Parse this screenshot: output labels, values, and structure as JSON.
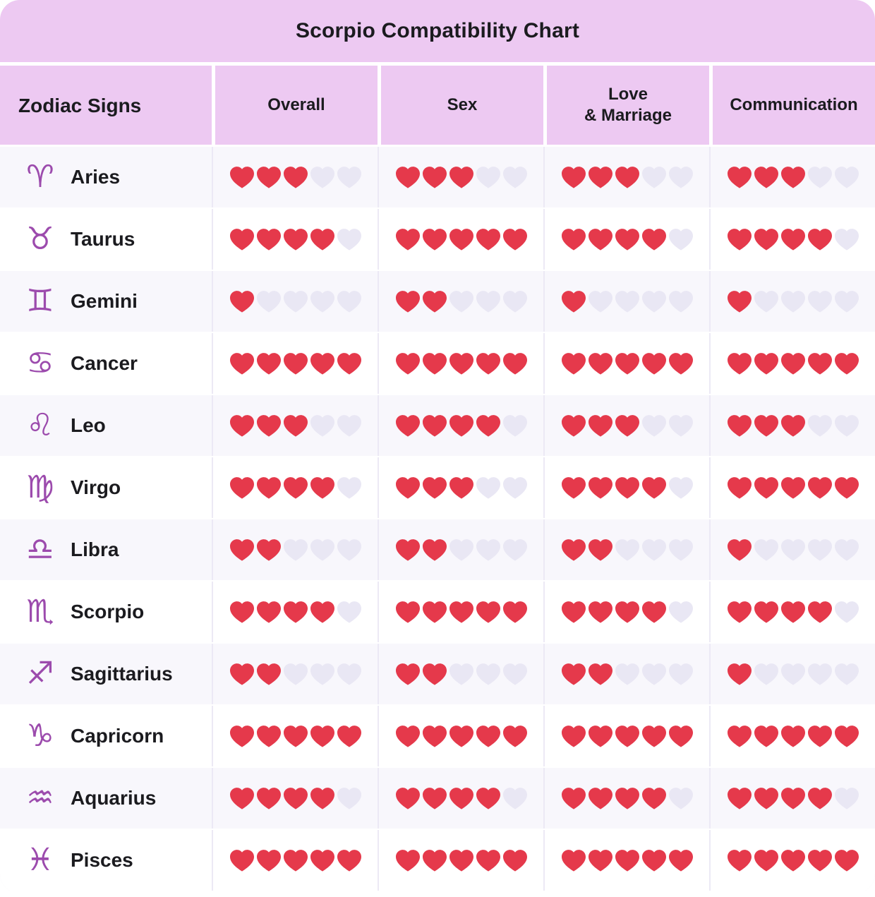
{
  "chart_data": {
    "type": "table",
    "title": "Scorpio Compatibility Chart",
    "row_header": "Zodiac Signs",
    "columns": [
      "Overall",
      "Sex",
      "Love\n& Marriage",
      "Communication"
    ],
    "scale_max": 5,
    "unit": "hearts",
    "rows": [
      {
        "sign": "Aries",
        "symbol": "♈",
        "values": [
          3,
          3,
          3,
          3
        ]
      },
      {
        "sign": "Taurus",
        "symbol": "♉",
        "values": [
          4,
          5,
          4,
          4
        ]
      },
      {
        "sign": "Gemini",
        "symbol": "♊",
        "values": [
          1,
          2,
          1,
          1
        ]
      },
      {
        "sign": "Cancer",
        "symbol": "♋",
        "values": [
          5,
          5,
          5,
          5
        ]
      },
      {
        "sign": "Leo",
        "symbol": "♌",
        "values": [
          3,
          4,
          3,
          3
        ]
      },
      {
        "sign": "Virgo",
        "symbol": "♍",
        "values": [
          4,
          3,
          4,
          5
        ]
      },
      {
        "sign": "Libra",
        "symbol": "♎",
        "values": [
          2,
          2,
          2,
          1
        ]
      },
      {
        "sign": "Scorpio",
        "symbol": "♏",
        "values": [
          4,
          5,
          4,
          4
        ]
      },
      {
        "sign": "Sagittarius",
        "symbol": "♐",
        "values": [
          2,
          2,
          2,
          1
        ]
      },
      {
        "sign": "Capricorn",
        "symbol": "♑",
        "values": [
          5,
          5,
          5,
          5
        ]
      },
      {
        "sign": "Aquarius",
        "symbol": "♒",
        "values": [
          4,
          4,
          4,
          4
        ]
      },
      {
        "sign": "Pisces",
        "symbol": "♓",
        "values": [
          5,
          5,
          5,
          5
        ]
      }
    ]
  },
  "colors": {
    "header_bg": "#edc9f2",
    "heart_filled": "#e5394b",
    "heart_empty": "#e9e7f4",
    "zodiac_icon": "#9c4bad",
    "text": "#1b1b1f"
  }
}
